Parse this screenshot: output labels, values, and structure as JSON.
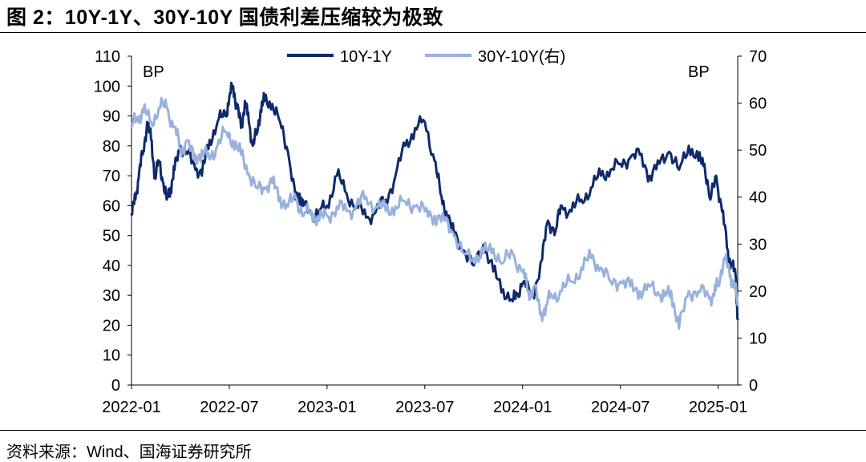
{
  "figure_title": "图 2：10Y-1Y、30Y-10Y 国债利差压缩较为极致",
  "source_note": "资料来源：Wind、国海证券研究所",
  "colors": {
    "series_10y1y": "#0e2a6b",
    "series_30y10y": "#98b1dd",
    "axis": "#000000"
  },
  "chart_data": {
    "type": "line",
    "title": "10Y-1Y、30Y-10Y 国债利差压缩较为极致",
    "x_tick_labels": [
      "2022-01",
      "2022-07",
      "2023-01",
      "2023-07",
      "2024-01",
      "2024-07",
      "2025-01"
    ],
    "x_range": [
      2022.0,
      2025.1
    ],
    "y_left": {
      "label": "BP",
      "range": [
        0,
        110
      ],
      "ticks": [
        "0",
        "10",
        "20",
        "30",
        "40",
        "50",
        "60",
        "70",
        "80",
        "90",
        "100",
        "110"
      ]
    },
    "y_right": {
      "label": "BP",
      "range": [
        0,
        70
      ],
      "ticks": [
        "0",
        "10",
        "20",
        "30",
        "40",
        "50",
        "60",
        "70"
      ]
    },
    "legend_position": "top-center",
    "series": [
      {
        "name": "10Y-1Y",
        "axis": "left",
        "x": [
          2022.0,
          2022.02,
          2022.04,
          2022.06,
          2022.08,
          2022.1,
          2022.12,
          2022.14,
          2022.16,
          2022.18,
          2022.2,
          2022.22,
          2022.25,
          2022.28,
          2022.32,
          2022.36,
          2022.4,
          2022.44,
          2022.48,
          2022.5,
          2022.52,
          2022.54,
          2022.56,
          2022.58,
          2022.6,
          2022.62,
          2022.64,
          2022.66,
          2022.68,
          2022.72,
          2022.76,
          2022.8,
          2022.84,
          2022.86,
          2022.88,
          2022.92,
          2022.96,
          2023.0,
          2023.05,
          2023.1,
          2023.15,
          2023.2,
          2023.25,
          2023.3,
          2023.35,
          2023.4,
          2023.45,
          2023.5,
          2023.55,
          2023.58,
          2023.61,
          2023.65,
          2023.7,
          2023.75,
          2023.8,
          2023.85,
          2023.9,
          2023.95,
          2023.97,
          2024.0,
          2024.05,
          2024.1,
          2024.13,
          2024.17,
          2024.2,
          2024.25,
          2024.3,
          2024.35,
          2024.4,
          2024.45,
          2024.5,
          2024.55,
          2024.6,
          2024.65,
          2024.7,
          2024.75,
          2024.8,
          2024.85,
          2024.9,
          2024.93,
          2024.96,
          2024.99,
          2025.02,
          2025.05,
          2025.07,
          2025.09,
          2025.1
        ],
        "values": [
          57,
          62,
          72,
          78,
          88,
          82,
          70,
          75,
          68,
          62,
          66,
          72,
          80,
          78,
          74,
          70,
          82,
          88,
          90,
          96,
          100,
          93,
          86,
          95,
          88,
          80,
          84,
          92,
          95,
          94,
          88,
          78,
          62,
          64,
          60,
          57,
          58,
          60,
          70,
          64,
          60,
          56,
          58,
          62,
          70,
          80,
          86,
          88,
          75,
          64,
          58,
          50,
          45,
          40,
          47,
          38,
          32,
          28,
          30,
          34,
          30,
          42,
          55,
          52,
          60,
          58,
          62,
          66,
          70,
          72,
          74,
          76,
          77,
          70,
          74,
          78,
          72,
          80,
          75,
          74,
          62,
          70,
          58,
          45,
          40,
          36,
          22
        ]
      },
      {
        "name": "30Y-10Y(右)",
        "axis": "right",
        "x": [
          2022.0,
          2022.03,
          2022.06,
          2022.1,
          2022.14,
          2022.18,
          2022.22,
          2022.25,
          2022.28,
          2022.32,
          2022.36,
          2022.4,
          2022.44,
          2022.48,
          2022.52,
          2022.56,
          2022.6,
          2022.64,
          2022.68,
          2022.72,
          2022.76,
          2022.8,
          2022.84,
          2022.88,
          2022.92,
          2022.96,
          2023.0,
          2023.05,
          2023.1,
          2023.15,
          2023.2,
          2023.25,
          2023.3,
          2023.35,
          2023.4,
          2023.45,
          2023.5,
          2023.55,
          2023.6,
          2023.65,
          2023.7,
          2023.75,
          2023.8,
          2023.85,
          2023.9,
          2023.95,
          2024.0,
          2024.03,
          2024.06,
          2024.09,
          2024.12,
          2024.15,
          2024.2,
          2024.25,
          2024.3,
          2024.35,
          2024.4,
          2024.45,
          2024.5,
          2024.55,
          2024.6,
          2024.65,
          2024.7,
          2024.73,
          2024.76,
          2024.8,
          2024.85,
          2024.9,
          2024.95,
          2024.98,
          2025.0,
          2025.03,
          2025.06,
          2025.08,
          2025.1
        ],
        "values": [
          55,
          57,
          58,
          56,
          59,
          59,
          55,
          50,
          52,
          48,
          50,
          48,
          51,
          54,
          52,
          49,
          45,
          42,
          42,
          43,
          40,
          38,
          40,
          36,
          37,
          35,
          36,
          38,
          37,
          38,
          40,
          38,
          37,
          38,
          39,
          38,
          37,
          36,
          35,
          32,
          28,
          27,
          28,
          29,
          26,
          28,
          24,
          20,
          21,
          15,
          17,
          19,
          20,
          22,
          25,
          27,
          25,
          22,
          22,
          21,
          20,
          21,
          19,
          19,
          20,
          12,
          20,
          20,
          19,
          19,
          22,
          27,
          23,
          22,
          17
        ]
      }
    ]
  }
}
